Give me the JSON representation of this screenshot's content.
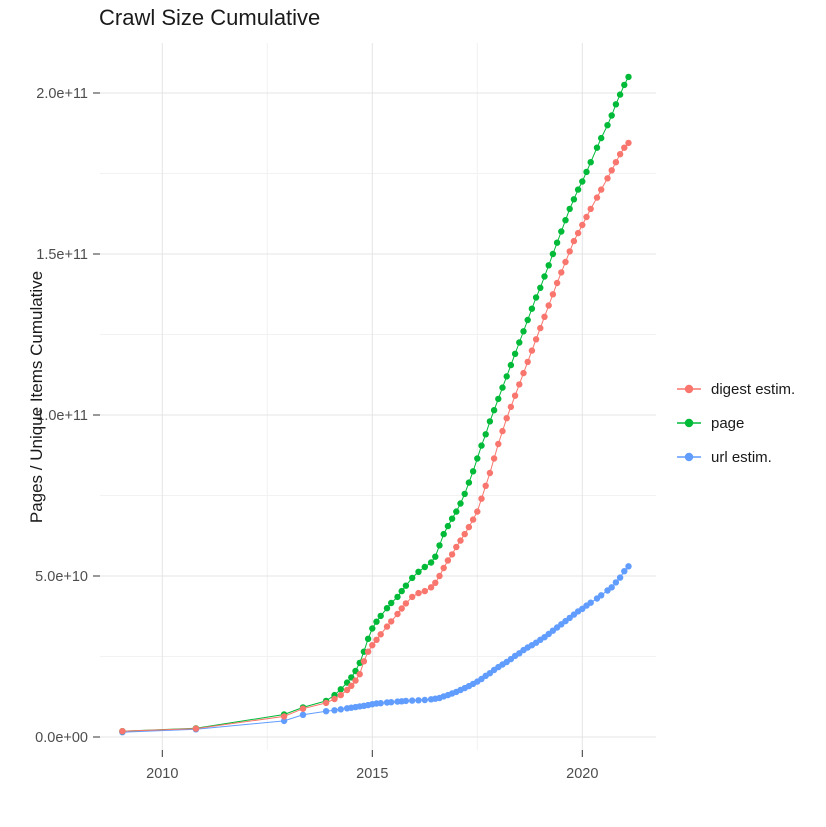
{
  "style": {
    "background": "#ffffff",
    "grid_major": "#e4e4e4",
    "grid_minor": "#f2f2f2",
    "tick_color": "#333333",
    "tick_label_color": "#4d4d4d",
    "title_color": "#1a1a1a"
  },
  "chart_data": {
    "type": "scatter",
    "title": "Crawl Size Cumulative",
    "xlabel": "",
    "ylabel": "Pages / Unique Items Cumulative",
    "legend_position": "right",
    "grid": true,
    "x_ticks": {
      "values": [
        2010,
        2015,
        2020
      ],
      "labels": [
        "2010",
        "2015",
        "2020"
      ]
    },
    "x_minor_ticks": [
      2012.5,
      2017.5
    ],
    "y_ticks": {
      "values_billions": [
        0,
        50,
        100,
        150,
        200
      ],
      "labels": [
        "0.0e+00",
        "5.0e+10",
        "1.0e+11",
        "1.5e+11",
        "2.0e+11"
      ]
    },
    "y_minor_ticks_billions": [
      25,
      75,
      125,
      175
    ],
    "xlim": [
      2008.5,
      2021.75
    ],
    "ylim": [
      0,
      205000000000.0
    ],
    "y_unit_note": "series values are in billions (1e9 pages / unique items)",
    "x": [
      2009.05,
      2010.8,
      2012.9,
      2013.35,
      2013.9,
      2014.1,
      2014.25,
      2014.4,
      2014.5,
      2014.6,
      2014.7,
      2014.8,
      2014.9,
      2015,
      2015.1,
      2015.2,
      2015.35,
      2015.45,
      2015.6,
      2015.7,
      2015.8,
      2015.95,
      2016.1,
      2016.25,
      2016.4,
      2016.5,
      2016.6,
      2016.7,
      2016.8,
      2016.9,
      2017,
      2017.1,
      2017.2,
      2017.3,
      2017.4,
      2017.5,
      2017.6,
      2017.7,
      2017.8,
      2017.9,
      2018,
      2018.1,
      2018.2,
      2018.3,
      2018.4,
      2018.5,
      2018.6,
      2018.7,
      2018.8,
      2018.9,
      2019,
      2019.1,
      2019.2,
      2019.3,
      2019.4,
      2019.5,
      2019.6,
      2019.7,
      2019.8,
      2019.9,
      2020,
      2020.1,
      2020.2,
      2020.35,
      2020.45,
      2020.6,
      2020.7,
      2020.8,
      2020.9,
      2021,
      2021.1
    ],
    "series": [
      {
        "name": "digest estim.",
        "color": "#F8766D",
        "values": [
          1.8,
          2.6,
          6.4,
          8.8,
          10.6,
          11.8,
          13,
          14.6,
          15.9,
          17.5,
          19.5,
          23.5,
          26.5,
          28.5,
          30.2,
          31.9,
          34.3,
          35.9,
          38.2,
          39.9,
          41.5,
          43.5,
          44.7,
          45.3,
          46.5,
          47.9,
          50,
          52.5,
          54.8,
          56.7,
          59,
          61,
          63,
          65.2,
          67.5,
          70,
          74,
          78,
          82,
          86.5,
          91,
          95,
          99,
          102.5,
          106,
          109.5,
          113,
          116.5,
          120,
          123.5,
          127,
          130.5,
          134,
          137.5,
          141,
          144.3,
          147.5,
          150.8,
          154,
          156.5,
          159,
          161.5,
          164,
          167.5,
          170,
          173.5,
          176,
          178.5,
          181,
          183,
          184.5
        ]
      },
      {
        "name": "page",
        "color": "#00BA38",
        "values": [
          1.8,
          2.7,
          7,
          9.2,
          11.2,
          13,
          14.8,
          16.9,
          18.5,
          20.5,
          23,
          26.5,
          30.5,
          33.7,
          35.8,
          37.6,
          40,
          41.6,
          43.5,
          45.3,
          47,
          49.4,
          51.3,
          52.8,
          54.2,
          56,
          59.5,
          63,
          65.5,
          67.8,
          70,
          72.5,
          75.5,
          79,
          82.5,
          86.5,
          90.5,
          94,
          98,
          101.5,
          105,
          108.5,
          112,
          115.5,
          119,
          122.5,
          126,
          129.5,
          133,
          136.5,
          139.5,
          143,
          146.5,
          150,
          153.5,
          157,
          160.5,
          164,
          167,
          170,
          172.5,
          175.5,
          178.5,
          183,
          186,
          190,
          193,
          196.5,
          199.5,
          202.5,
          205
        ]
      },
      {
        "name": "url estim.",
        "color": "#619CFF",
        "values": [
          1.5,
          2.4,
          5,
          6.9,
          8,
          8.3,
          8.6,
          8.9,
          9.1,
          9.3,
          9.5,
          9.7,
          9.9,
          10.2,
          10.4,
          10.5,
          10.7,
          10.8,
          11,
          11.1,
          11.2,
          11.3,
          11.4,
          11.5,
          11.7,
          11.9,
          12.1,
          12.6,
          13,
          13.5,
          14,
          14.6,
          15.2,
          15.8,
          16.5,
          17.2,
          18,
          19,
          19.8,
          20.8,
          21.7,
          22.5,
          23.3,
          24.2,
          25.2,
          26,
          27,
          27.8,
          28.5,
          29.3,
          30.2,
          31,
          32,
          33,
          34,
          35,
          36,
          37,
          38,
          39,
          39.8,
          40.8,
          41.7,
          43,
          44,
          45.5,
          46.5,
          48,
          49.5,
          51.5,
          53
        ]
      }
    ]
  }
}
